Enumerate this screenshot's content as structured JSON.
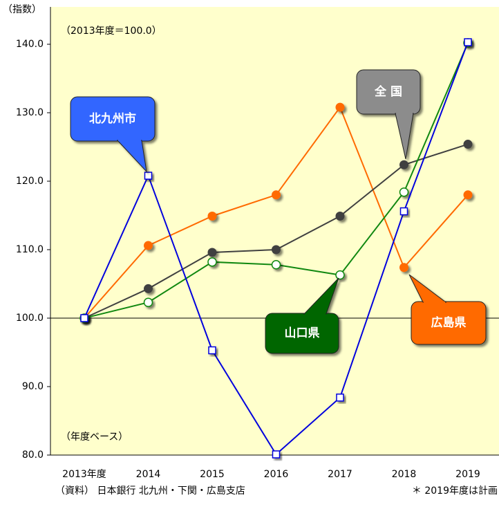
{
  "chart_data": {
    "type": "line",
    "y_unit_label": "（指数）",
    "annotations": [
      "（2013年度＝100.0）",
      "（年度ベース）"
    ],
    "source": "（資料） 日本銀行 北九州・下関・広島支店",
    "note": "＊ 2019年度は計画",
    "categories": [
      "2013年度",
      "2014",
      "2015",
      "2016",
      "2017",
      "2018",
      "2019"
    ],
    "series": [
      {
        "name": "広島県",
        "color": "#ff6a00",
        "marker": "circle",
        "values": [
          100.0,
          110.6,
          114.9,
          118.0,
          130.8,
          107.4,
          118.0
        ]
      },
      {
        "name": "全 国",
        "color": "#404040",
        "box_color": "#8c8c8c",
        "marker": "circle",
        "values": [
          100.0,
          104.3,
          109.6,
          110.0,
          114.9,
          122.4,
          125.4
        ]
      },
      {
        "name": "山口県",
        "color": "#118811",
        "box_color": "#006600",
        "marker": "hollow-circle",
        "values": [
          100.0,
          102.3,
          108.2,
          107.8,
          106.3,
          118.4,
          140.2
        ]
      },
      {
        "name": "北九州市",
        "color": "#0000dd",
        "box_color": "#3366ff",
        "marker": "square",
        "values": [
          100.0,
          120.8,
          95.3,
          80.1,
          88.4,
          115.6,
          140.3
        ]
      }
    ],
    "ylim": [
      80,
      140
    ],
    "yticks": [
      {
        "value": 80,
        "label": "80.0"
      },
      {
        "value": 90,
        "label": "90.0"
      },
      {
        "value": 100,
        "label": "100.0"
      },
      {
        "value": 110,
        "label": "110.0"
      },
      {
        "value": 120,
        "label": "120.0"
      },
      {
        "value": 130,
        "label": "130.0"
      },
      {
        "value": 140,
        "label": "140.0"
      }
    ],
    "reference_line": 100,
    "background": "#ffffcc"
  }
}
